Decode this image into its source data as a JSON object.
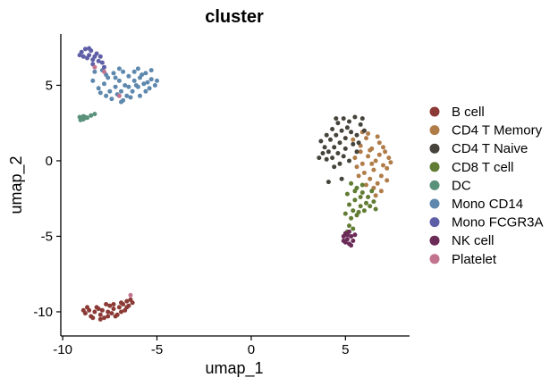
{
  "chart_data": {
    "type": "scatter",
    "title": "cluster",
    "xlabel": "umap_1",
    "ylabel": "umap_2",
    "xlim": [
      -10.1,
      8.4
    ],
    "ylim": [
      -11.6,
      8.4
    ],
    "xticks": [
      -10,
      -5,
      0,
      5
    ],
    "yticks": [
      -10,
      -5,
      0,
      5
    ],
    "tick_labels_x": [
      "-10",
      "-5",
      "0",
      "5"
    ],
    "tick_labels_y": [
      "-10",
      "-5",
      "0",
      "5"
    ],
    "grid": false,
    "legend_position": "right",
    "series": [
      {
        "name": "B cell",
        "color": "#8b3a36",
        "points": [
          [
            -8.8,
            -10.1
          ],
          [
            -8.6,
            -9.9
          ],
          [
            -8.5,
            -10.3
          ],
          [
            -8.3,
            -10.0
          ],
          [
            -8.2,
            -9.7
          ],
          [
            -8.0,
            -10.2
          ],
          [
            -7.9,
            -9.9
          ],
          [
            -7.8,
            -10.4
          ],
          [
            -7.6,
            -10.0
          ],
          [
            -7.5,
            -9.6
          ],
          [
            -7.4,
            -10.1
          ],
          [
            -7.3,
            -9.8
          ],
          [
            -7.1,
            -10.2
          ],
          [
            -7.0,
            -9.7
          ],
          [
            -6.9,
            -10.0
          ],
          [
            -6.8,
            -9.5
          ],
          [
            -6.7,
            -9.9
          ],
          [
            -6.6,
            -9.3
          ],
          [
            -6.5,
            -9.6
          ],
          [
            -6.4,
            -9.2
          ],
          [
            -8.7,
            -9.7
          ],
          [
            -8.4,
            -10.4
          ],
          [
            -8.1,
            -9.8
          ],
          [
            -7.7,
            -9.5
          ],
          [
            -7.2,
            -10.3
          ],
          [
            -6.9,
            -9.4
          ],
          [
            -7.6,
            -10.3
          ],
          [
            -8.0,
            -10.5
          ],
          [
            -6.6,
            -9.7
          ],
          [
            -6.3,
            -9.4
          ],
          [
            -8.9,
            -9.9
          ],
          [
            -7.3,
            -9.5
          ]
        ]
      },
      {
        "name": "CD4 T Memory",
        "color": "#b07d49",
        "points": [
          [
            5.4,
            1.4
          ],
          [
            5.8,
            1.0
          ],
          [
            6.1,
            1.5
          ],
          [
            6.4,
            0.8
          ],
          [
            6.8,
            1.2
          ],
          [
            7.1,
            0.6
          ],
          [
            7.3,
            0.2
          ],
          [
            7.0,
            -0.3
          ],
          [
            6.6,
            0.0
          ],
          [
            6.2,
            0.3
          ],
          [
            5.9,
            -0.2
          ],
          [
            5.6,
            -0.4
          ],
          [
            6.0,
            -0.8
          ],
          [
            6.5,
            -0.6
          ],
          [
            6.9,
            -1.0
          ],
          [
            7.2,
            -0.5
          ],
          [
            6.3,
            -1.2
          ],
          [
            6.7,
            -1.5
          ],
          [
            6.1,
            -1.6
          ],
          [
            7.4,
            -0.1
          ],
          [
            6.8,
            0.4
          ],
          [
            5.5,
            0.2
          ],
          [
            5.8,
            0.6
          ],
          [
            6.4,
            -0.2
          ],
          [
            7.0,
            0.9
          ],
          [
            6.2,
            1.8
          ],
          [
            5.7,
            -1.0
          ],
          [
            6.5,
            -1.8
          ],
          [
            6.9,
            -2.0
          ],
          [
            6.6,
            -2.3
          ],
          [
            7.2,
            -1.3
          ],
          [
            6.3,
            0.7
          ],
          [
            5.9,
            1.9
          ],
          [
            6.7,
            1.6
          ]
        ]
      },
      {
        "name": "CD4 T Naive",
        "color": "#45433b",
        "points": [
          [
            3.7,
            1.3
          ],
          [
            4.0,
            1.7
          ],
          [
            4.3,
            2.1
          ],
          [
            4.6,
            2.5
          ],
          [
            4.9,
            2.8
          ],
          [
            5.2,
            2.6
          ],
          [
            5.5,
            2.9
          ],
          [
            5.8,
            2.4
          ],
          [
            6.0,
            2.0
          ],
          [
            5.6,
            1.7
          ],
          [
            5.3,
            1.9
          ],
          [
            5.0,
            1.5
          ],
          [
            4.7,
            1.2
          ],
          [
            4.4,
            0.9
          ],
          [
            4.1,
            0.6
          ],
          [
            3.9,
            0.9
          ],
          [
            4.2,
            1.4
          ],
          [
            4.8,
            2.0
          ],
          [
            5.1,
            2.2
          ],
          [
            5.4,
            1.1
          ],
          [
            5.0,
            0.8
          ],
          [
            4.6,
            0.5
          ],
          [
            4.3,
            0.2
          ],
          [
            4.0,
            0.1
          ],
          [
            3.8,
            0.5
          ],
          [
            4.5,
            1.7
          ],
          [
            4.9,
            0.3
          ],
          [
            5.2,
            0.0
          ],
          [
            4.7,
            -0.2
          ],
          [
            4.4,
            -0.4
          ],
          [
            5.7,
            1.2
          ],
          [
            5.9,
            2.8
          ],
          [
            4.5,
            2.8
          ],
          [
            3.6,
            0.2
          ],
          [
            4.1,
            -1.4
          ],
          [
            4.8,
            -1.2
          ],
          [
            5.6,
            0.6
          ]
        ]
      },
      {
        "name": "CD8 T cell",
        "color": "#617c33",
        "points": [
          [
            5.3,
            -1.5
          ],
          [
            5.6,
            -1.8
          ],
          [
            5.9,
            -2.1
          ],
          [
            6.2,
            -2.4
          ],
          [
            5.5,
            -2.6
          ],
          [
            5.2,
            -2.9
          ],
          [
            5.8,
            -3.0
          ],
          [
            6.1,
            -2.8
          ],
          [
            5.4,
            -3.3
          ],
          [
            5.0,
            -3.5
          ],
          [
            5.7,
            -3.4
          ],
          [
            6.3,
            -3.0
          ],
          [
            6.5,
            -2.7
          ],
          [
            6.6,
            -3.2
          ],
          [
            5.1,
            -2.2
          ],
          [
            5.9,
            -1.6
          ],
          [
            6.4,
            -2.0
          ],
          [
            5.3,
            -3.8
          ],
          [
            5.6,
            -3.6
          ],
          [
            6.0,
            -3.3
          ],
          [
            5.8,
            -2.4
          ],
          [
            5.5,
            -2.0
          ],
          [
            5.2,
            -4.3
          ],
          [
            5.1,
            -4.7
          ],
          [
            5.4,
            -4.5
          ]
        ]
      },
      {
        "name": "DC",
        "color": "#5a917a",
        "points": [
          [
            -9.1,
            2.9
          ],
          [
            -9.0,
            2.8
          ],
          [
            -8.9,
            2.75
          ],
          [
            -8.8,
            2.9
          ],
          [
            -8.7,
            2.85
          ],
          [
            -8.5,
            3.0
          ],
          [
            -8.3,
            3.1
          ],
          [
            -9.05,
            2.7
          ],
          [
            -8.9,
            2.95
          ]
        ]
      },
      {
        "name": "Mono CD14",
        "color": "#5e88ad",
        "points": [
          [
            -7.9,
            6.0
          ],
          [
            -7.6,
            5.5
          ],
          [
            -7.3,
            5.8
          ],
          [
            -7.0,
            5.3
          ],
          [
            -6.8,
            5.9
          ],
          [
            -6.5,
            5.6
          ],
          [
            -6.2,
            5.9
          ],
          [
            -5.9,
            5.5
          ],
          [
            -5.6,
            5.8
          ],
          [
            -5.3,
            5.4
          ],
          [
            -5.1,
            5.0
          ],
          [
            -5.4,
            4.8
          ],
          [
            -5.7,
            5.1
          ],
          [
            -6.0,
            4.9
          ],
          [
            -6.3,
            4.6
          ],
          [
            -6.6,
            4.3
          ],
          [
            -6.9,
            4.6
          ],
          [
            -7.2,
            4.9
          ],
          [
            -7.5,
            4.6
          ],
          [
            -7.8,
            5.1
          ],
          [
            -8.1,
            4.8
          ],
          [
            -8.4,
            5.3
          ],
          [
            -7.7,
            4.3
          ],
          [
            -7.4,
            4.1
          ],
          [
            -7.1,
            4.4
          ],
          [
            -6.8,
            4.0
          ],
          [
            -6.5,
            4.9
          ],
          [
            -6.2,
            5.3
          ],
          [
            -5.9,
            4.3
          ],
          [
            -5.6,
            4.6
          ],
          [
            -5.3,
            6.0
          ],
          [
            -5.5,
            5.2
          ],
          [
            -6.0,
            6.1
          ],
          [
            -6.7,
            5.0
          ],
          [
            -7.0,
            6.1
          ],
          [
            -7.7,
            5.7
          ],
          [
            -8.3,
            5.9
          ],
          [
            -5.0,
            5.3
          ],
          [
            -6.4,
            4.2
          ],
          [
            -7.2,
            5.5
          ],
          [
            -6.1,
            5.0
          ],
          [
            -5.8,
            5.7
          ],
          [
            -6.9,
            3.9
          ],
          [
            -8.0,
            4.5
          ]
        ]
      },
      {
        "name": "Mono FCGR3A",
        "color": "#5f5fa7",
        "points": [
          [
            -9.0,
            7.2
          ],
          [
            -8.8,
            7.4
          ],
          [
            -8.6,
            7.0
          ],
          [
            -8.5,
            7.3
          ],
          [
            -8.3,
            6.9
          ],
          [
            -8.1,
            6.6
          ],
          [
            -8.0,
            6.9
          ],
          [
            -7.9,
            6.5
          ],
          [
            -8.4,
            6.7
          ],
          [
            -8.7,
            6.8
          ],
          [
            -8.9,
            6.9
          ],
          [
            -8.2,
            7.1
          ],
          [
            -7.8,
            6.2
          ],
          [
            -8.6,
            7.45
          ],
          [
            -8.4,
            6.4
          ],
          [
            -9.1,
            7.0
          ]
        ]
      },
      {
        "name": "NK cell",
        "color": "#6b2b57",
        "points": [
          [
            4.9,
            -5.0
          ],
          [
            5.1,
            -5.2
          ],
          [
            5.3,
            -5.0
          ],
          [
            5.0,
            -5.4
          ],
          [
            5.2,
            -5.5
          ],
          [
            5.4,
            -5.3
          ],
          [
            5.5,
            -4.9
          ],
          [
            5.0,
            -4.8
          ],
          [
            5.2,
            -4.7
          ],
          [
            4.9,
            -5.3
          ],
          [
            5.3,
            -5.6
          ],
          [
            5.1,
            -4.9
          ]
        ]
      },
      {
        "name": "Platelet",
        "color": "#c2738e",
        "points": [
          [
            -6.4,
            -8.9
          ],
          [
            -8.3,
            6.2
          ],
          [
            -7.0,
            4.3
          ],
          [
            -7.8,
            5.9
          ]
        ]
      }
    ]
  }
}
